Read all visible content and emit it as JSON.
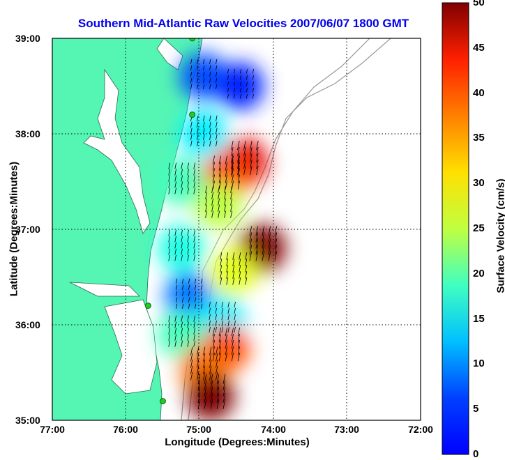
{
  "title": "Southern Mid-Atlantic Raw Velocities 2007/06/07 1800 GMT",
  "x_axis": {
    "label": "Longitude (Degrees:Minutes)",
    "ticks": [
      "77:00",
      "76:00",
      "75:00",
      "74:00",
      "73:00",
      "72:00"
    ]
  },
  "y_axis": {
    "label": "Latitude (Degrees:Minutes)",
    "ticks": [
      "39:00",
      "38:00",
      "37:00",
      "36:00",
      "35:00"
    ]
  },
  "colorbar": {
    "label": "Surface Velocity (cm/s)",
    "ticks": [
      "0",
      "5",
      "10",
      "15",
      "20",
      "25",
      "30",
      "35",
      "40",
      "45",
      "50"
    ],
    "min": 0,
    "max": 50,
    "colormap": "jet"
  },
  "colors": {
    "land": "#55f5b4",
    "title": "#0000ee",
    "grid": "#000000",
    "bathymetry_contour": "#999999",
    "station_marker": "#22cc22"
  },
  "map_extent": {
    "lon_min": -77,
    "lon_max": -72,
    "lat_min": 35,
    "lat_max": 39
  },
  "chart_data": {
    "type": "heatmap",
    "title": "Southern Mid-Atlantic Raw Velocities 2007/06/07 1800 GMT",
    "xlabel": "Longitude (Degrees:Minutes)",
    "ylabel": "Latitude (Degrees:Minutes)",
    "xlim": [
      -77,
      -72
    ],
    "ylim": [
      35,
      39
    ],
    "grid": true,
    "colorbar_range": [
      0,
      50
    ],
    "velocity_zones": [
      {
        "lon": -74.95,
        "lat": 38.6,
        "speed": 10
      },
      {
        "lon": -74.45,
        "lat": 38.5,
        "speed": 8
      },
      {
        "lon": -74.95,
        "lat": 38.0,
        "speed": 18
      },
      {
        "lon": -74.4,
        "lat": 37.7,
        "speed": 45
      },
      {
        "lon": -74.65,
        "lat": 37.55,
        "speed": 40
      },
      {
        "lon": -75.25,
        "lat": 37.5,
        "speed": 22
      },
      {
        "lon": -74.75,
        "lat": 37.25,
        "speed": 28
      },
      {
        "lon": -75.25,
        "lat": 36.8,
        "speed": 20
      },
      {
        "lon": -74.15,
        "lat": 36.8,
        "speed": 50
      },
      {
        "lon": -74.55,
        "lat": 36.55,
        "speed": 30
      },
      {
        "lon": -75.15,
        "lat": 36.3,
        "speed": 12
      },
      {
        "lon": -74.7,
        "lat": 36.05,
        "speed": 18
      },
      {
        "lon": -75.25,
        "lat": 35.9,
        "speed": 22
      },
      {
        "lon": -74.65,
        "lat": 35.75,
        "speed": 40
      },
      {
        "lon": -74.95,
        "lat": 35.55,
        "speed": 38
      },
      {
        "lon": -74.85,
        "lat": 35.25,
        "speed": 50
      }
    ],
    "stations": [
      {
        "lon": -75.1,
        "lat": 39.0
      },
      {
        "lon": -75.1,
        "lat": 38.2
      },
      {
        "lon": -75.7,
        "lat": 36.2
      },
      {
        "lon": -75.5,
        "lat": 35.2
      }
    ]
  }
}
